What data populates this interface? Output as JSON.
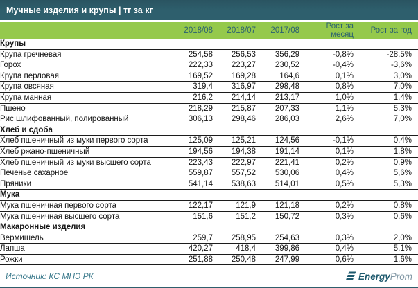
{
  "title": "Мучные изделия и крупы | тг за кг",
  "columns": [
    "2018/08",
    "2018/07",
    "2017/08",
    "Рост за месяц",
    "Рост за год"
  ],
  "sections": [
    {
      "name": "Крупы",
      "rows": [
        {
          "label": "Крупа гречневая",
          "values": [
            "254,58",
            "256,53",
            "356,29",
            "-0,8%",
            "-28,5%"
          ]
        },
        {
          "label": "Горох",
          "values": [
            "222,33",
            "223,27",
            "230,52",
            "-0,4%",
            "-3,6%"
          ]
        },
        {
          "label": "Крупа перловая",
          "values": [
            "169,52",
            "169,28",
            "164,6",
            "0,1%",
            "3,0%"
          ]
        },
        {
          "label": "Крупа овсяная",
          "values": [
            "319,4",
            "316,97",
            "298,48",
            "0,8%",
            "7,0%"
          ]
        },
        {
          "label": "Крупа манная",
          "values": [
            "216,2",
            "214,14",
            "213,17",
            "1,0%",
            "1,4%"
          ]
        },
        {
          "label": "Пшено",
          "values": [
            "218,29",
            "215,87",
            "207,33",
            "1,1%",
            "5,3%"
          ]
        },
        {
          "label": "Рис шлифованный, полированный",
          "values": [
            "306,13",
            "298,46",
            "286,03",
            "2,6%",
            "7,0%"
          ]
        }
      ]
    },
    {
      "name": "Хлеб и сдоба",
      "rows": [
        {
          "label": "Хлеб пшеничный из муки первого сорта",
          "values": [
            "125,09",
            "125,21",
            "124,56",
            "-0,1%",
            "0,4%"
          ]
        },
        {
          "label": "Хлеб ржано-пшеничный",
          "values": [
            "194,56",
            "194,38",
            "191,14",
            "0,1%",
            "1,8%"
          ]
        },
        {
          "label": "Хлеб пшеничный из муки высшего сорта",
          "values": [
            "223,43",
            "222,97",
            "221,41",
            "0,2%",
            "0,9%"
          ]
        },
        {
          "label": "Печенье сахарное",
          "values": [
            "559,87",
            "557,52",
            "530,06",
            "0,4%",
            "5,6%"
          ]
        },
        {
          "label": "Пряники",
          "values": [
            "541,14",
            "538,63",
            "514,01",
            "0,5%",
            "5,3%"
          ]
        }
      ]
    },
    {
      "name": "Мука",
      "rows": [
        {
          "label": "Мука пшеничная первого сорта",
          "values": [
            "122,17",
            "121,9",
            "121,18",
            "0,2%",
            "0,8%"
          ]
        },
        {
          "label": "Мука пшеничная высшего сорта",
          "values": [
            "151,6",
            "151,2",
            "150,72",
            "0,3%",
            "0,6%"
          ]
        }
      ]
    },
    {
      "name": "Макаронные изделия",
      "rows": [
        {
          "label": "Вермишель",
          "values": [
            "259,7",
            "258,95",
            "254,63",
            "0,3%",
            "2,0%"
          ]
        },
        {
          "label": "Лапша",
          "values": [
            "420,27",
            "418,4",
            "399,86",
            "0,4%",
            "5,1%"
          ]
        },
        {
          "label": "Рожки",
          "values": [
            "251,88",
            "250,48",
            "247,99",
            "0,6%",
            "1,6%"
          ]
        }
      ]
    }
  ],
  "footer": {
    "source": "Источник: КС МНЭ РК",
    "logo_bold": "Energy",
    "logo_light": "Prom"
  },
  "colors": {
    "teal": "#2E5F6D",
    "teal_dark": "#2A5461",
    "green": "#95C94C",
    "header_text": "#2B6170",
    "source_text": "#3B7A8C",
    "logo_dark": "#1E5A6E",
    "logo_light": "#8298A5"
  }
}
